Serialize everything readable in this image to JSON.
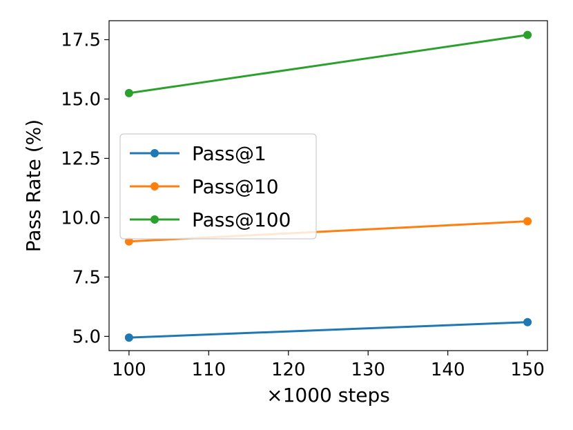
{
  "chart_data": {
    "type": "line",
    "title": "",
    "xlabel": "×1000 steps",
    "ylabel": "Pass Rate (%)",
    "x": [
      100,
      150
    ],
    "xlim": [
      97.5,
      152.5
    ],
    "ylim": [
      4.4,
      18.3
    ],
    "xticks": [
      100,
      110,
      120,
      130,
      140,
      150
    ],
    "yticks": [
      5.0,
      7.5,
      10.0,
      12.5,
      15.0,
      17.5
    ],
    "xtick_labels": [
      "100",
      "110",
      "120",
      "130",
      "140",
      "150"
    ],
    "ytick_labels": [
      "5.0",
      "7.5",
      "10.0",
      "12.5",
      "15.0",
      "17.5"
    ],
    "grid": false,
    "legend_position": "center-left",
    "series": [
      {
        "name": "Pass@1",
        "color": "#1f77b4",
        "values": [
          4.95,
          5.6
        ]
      },
      {
        "name": "Pass@10",
        "color": "#ff7f0e",
        "values": [
          9.0,
          9.85
        ]
      },
      {
        "name": "Pass@100",
        "color": "#2ca02c",
        "values": [
          15.25,
          17.7
        ]
      }
    ]
  }
}
